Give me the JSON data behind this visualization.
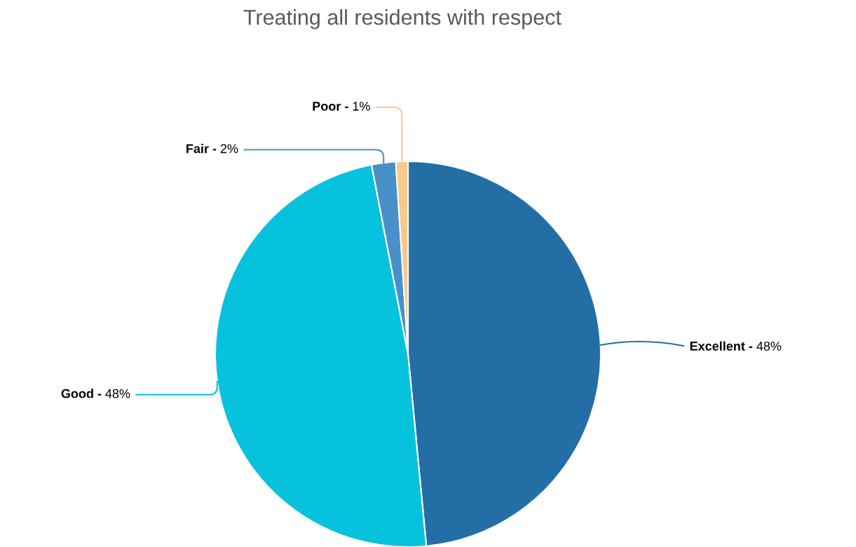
{
  "chart_data": {
    "type": "pie",
    "title": "Treating all residents with respect",
    "categories": [
      "Excellent -",
      "Good -",
      "Fair -",
      "Poor -"
    ],
    "values": [
      48,
      48,
      2,
      1
    ],
    "colors": [
      "#236fa5",
      "#07c2dc",
      "#4a90c8",
      "#f9c98a"
    ],
    "value_labels": [
      "48%",
      "48%",
      "2%",
      "1%"
    ],
    "legend": false
  }
}
